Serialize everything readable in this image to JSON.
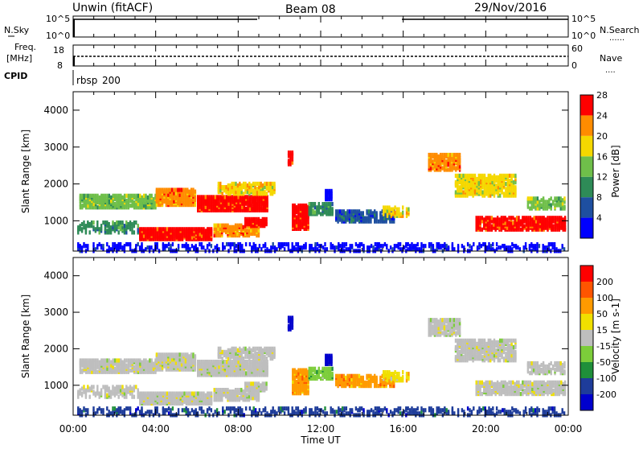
{
  "header": {
    "station": "Unwin (fitACF)",
    "beam": "Beam 08",
    "date": "29/Nov/2016"
  },
  "side_labels": {
    "nsky": "N.Sky",
    "freq_line1": "Freq.",
    "freq_line2": "[MHz]",
    "cpid": "CPID",
    "nsearch": "N.Search",
    "nave": "Nave",
    "dots": "......",
    "dots_short": "...."
  },
  "noise_panel": {
    "left_ticks": [
      "10^5",
      "10^0"
    ],
    "right_ticks": [
      "10^5",
      "10^0"
    ]
  },
  "freq_panel": {
    "left_ticks": [
      "18",
      "8"
    ],
    "right_ticks": [
      "60",
      "0"
    ]
  },
  "cpid_panel": {
    "program": "rbsp",
    "cpid": "200"
  },
  "chart_data": [
    {
      "type": "heatmap",
      "name": "power",
      "ylabel": "Slant Range [km]",
      "ylim": [
        180,
        4500
      ],
      "yticks": [
        "1000",
        "2000",
        "3000",
        "4000"
      ],
      "xlim": [
        0,
        24
      ],
      "colorbar_label": "Power [dB]",
      "colorbar_ticks": [
        "4",
        "8",
        "12",
        "16",
        "20",
        "24",
        "28"
      ],
      "colors": [
        "#0000ff",
        "#1e4fa0",
        "#2e8b57",
        "#6fbf4a",
        "#f5d800",
        "#ff8c00",
        "#ff0000"
      ]
    },
    {
      "type": "heatmap",
      "name": "velocity",
      "ylabel": "Slant Range [km]",
      "ylim": [
        180,
        4500
      ],
      "yticks": [
        "1000",
        "2000",
        "3000",
        "4000"
      ],
      "xlim": [
        0,
        24
      ],
      "xlabel": "Time UT",
      "xticks": [
        "00:00",
        "04:00",
        "08:00",
        "12:00",
        "16:00",
        "20:00",
        "00:00"
      ],
      "colorbar_label": "Velocity [m s-1]",
      "colorbar_ticks": [
        "200",
        "100",
        "50",
        "15",
        "-15",
        "-50",
        "-100",
        "-200"
      ],
      "colors": [
        "#0000cd",
        "#1e3c9a",
        "#1f8f3a",
        "#7ccd3a",
        "#bebebe",
        "#f0e000",
        "#ff9a00",
        "#ff5500",
        "#ff0000"
      ]
    }
  ]
}
